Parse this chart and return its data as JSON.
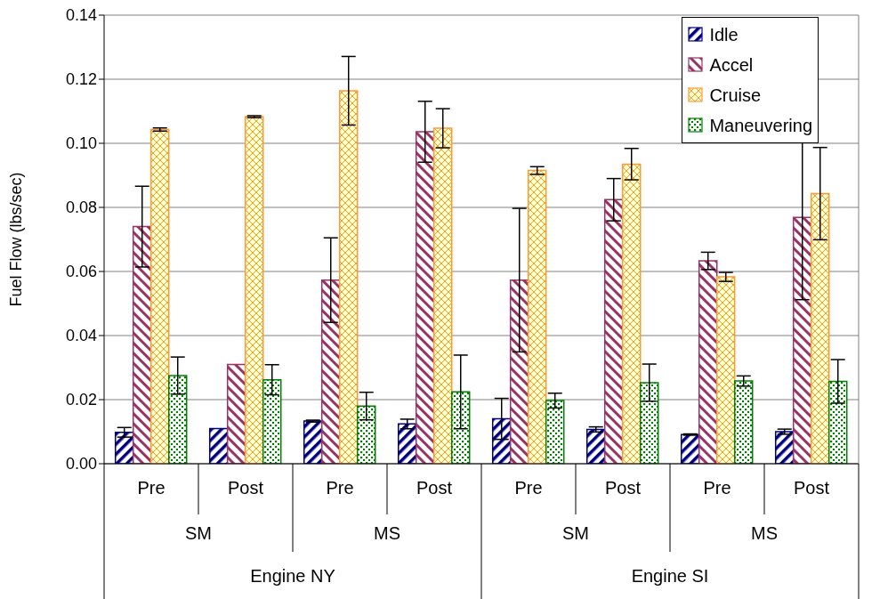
{
  "chart_data": {
    "type": "bar",
    "ylabel": "Fuel Flow (lbs/sec)",
    "categories": [
      "Pre",
      "Post",
      "Pre",
      "Post",
      "Pre",
      "Post",
      "Pre",
      "Post"
    ],
    "annotations": [
      "SM",
      "MS",
      "SM",
      "MS",
      "Engine NY",
      "Engine SI"
    ],
    "series": [
      {
        "name": "Idle",
        "color": "#000080",
        "values": [
          0.0098,
          0.011,
          0.0133,
          0.0124,
          0.014,
          0.0107,
          0.0091,
          0.01
        ],
        "errors": [
          0.0015,
          null,
          0.0003,
          0.0015,
          0.0064,
          0.0008,
          0.0002,
          0.0008
        ]
      },
      {
        "name": "Accel",
        "color": "#993366",
        "values": [
          0.074,
          0.031,
          0.0573,
          0.1036,
          0.0573,
          0.0824,
          0.0633,
          0.0769
        ],
        "errors": [
          0.0126,
          null,
          0.0132,
          0.0095,
          0.0224,
          0.0066,
          0.0027,
          0.0257
        ]
      },
      {
        "name": "Cruise",
        "color": "#ff9933",
        "values": [
          0.1043,
          0.1083,
          0.1164,
          0.1047,
          0.0915,
          0.0935,
          0.0583,
          0.0843
        ],
        "errors": [
          0.0005,
          0.0003,
          0.0107,
          0.0061,
          0.0012,
          0.0049,
          0.0014,
          0.0144
        ]
      },
      {
        "name": "Maneuvering",
        "color": "#008000",
        "values": [
          0.0275,
          0.0262,
          0.018,
          0.0224,
          0.0197,
          0.0253,
          0.0258,
          0.0257
        ],
        "errors": [
          0.0058,
          0.0047,
          0.0043,
          0.0115,
          0.0023,
          0.0058,
          0.0016,
          0.0068
        ]
      }
    ],
    "ylim": [
      0,
      0.14
    ],
    "yticks": [
      {
        "value": 0,
        "label": "0.00"
      },
      {
        "value": 0.02,
        "label": "0.02"
      },
      {
        "value": 0.04,
        "label": "0.04"
      },
      {
        "value": 0.06,
        "label": "0.06"
      },
      {
        "value": 0.08,
        "label": "0.08"
      },
      {
        "value": 0.1,
        "label": "0.10"
      },
      {
        "value": 0.12,
        "label": "0.12"
      },
      {
        "value": 0.14,
        "label": "0.14"
      }
    ],
    "grid": "y",
    "legend": "top right"
  }
}
